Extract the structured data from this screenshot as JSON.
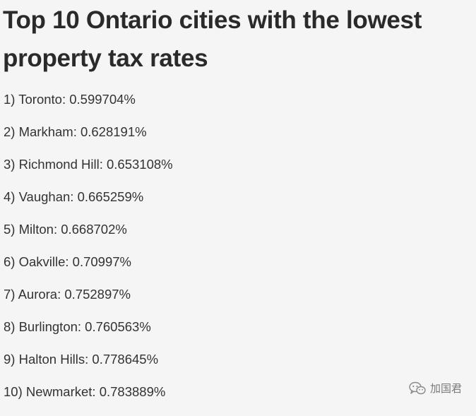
{
  "article": {
    "title": "Top 10 Ontario cities with the lowest property tax rates",
    "items": [
      "1) Toronto: 0.599704%",
      "2) Markham: 0.628191%",
      "3) Richmond Hill: 0.653108%",
      "4) Vaughan: 0.665259%",
      "5) Milton: 0.668702%",
      "6) Oakville: 0.70997%",
      "7) Aurora: 0.752897%",
      "8) Burlington: 0.760563%",
      "9) Halton Hills: 0.778645%",
      "10) Newmarket: 0.783889%"
    ]
  },
  "watermark": {
    "text": "加国君",
    "icon": "wechat-icon"
  }
}
